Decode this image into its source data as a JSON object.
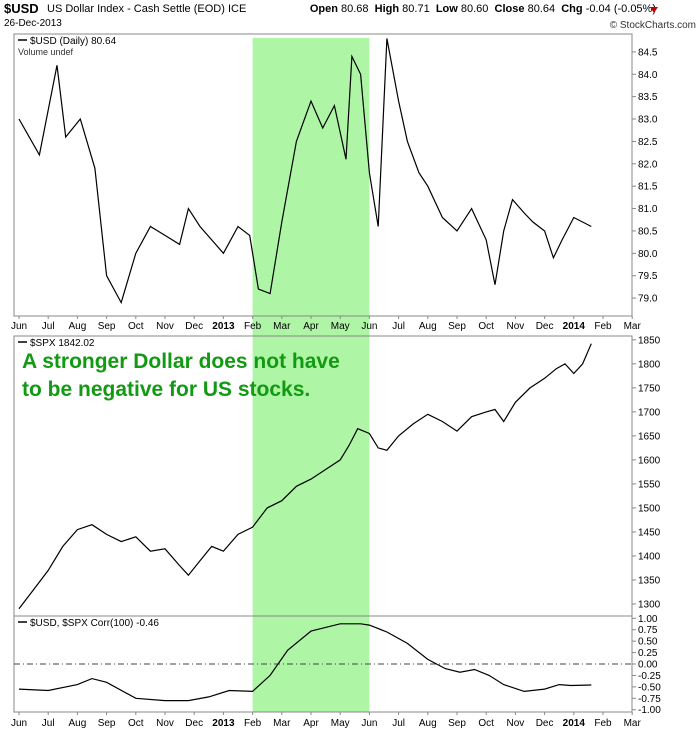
{
  "header": {
    "symbol": "$USD",
    "name": "US Dollar Index - Cash Settle (EOD)",
    "exchange": "ICE",
    "date": "26-Dec-2013",
    "open_label": "Open",
    "open": "80.68",
    "high_label": "High",
    "high": "80.71",
    "low_label": "Low",
    "low": "80.60",
    "close_label": "Close",
    "close": "80.64",
    "chg_label": "Chg",
    "chg": "-0.04 (-0.05%)",
    "credit": "© StockCharts.com"
  },
  "annotation": "A stronger Dollar does not have to be negative for US stocks.",
  "colors": {
    "highlight": "#aef5a6",
    "annotation": "#139a13",
    "line": "#000000",
    "change_down": "#c00000"
  },
  "chart_data": [
    {
      "type": "line",
      "legend": "$USD (Daily) 80.64",
      "sublegend": "Volume undef",
      "x_ticks": [
        "Jun",
        "Jul",
        "Aug",
        "Sep",
        "Oct",
        "Nov",
        "Dec",
        "2013",
        "Feb",
        "Mar",
        "Apr",
        "May",
        "Jun",
        "Jul",
        "Aug",
        "Sep",
        "Oct",
        "Nov",
        "Dec",
        "2014",
        "Feb",
        "Mar"
      ],
      "ylim": [
        78.6,
        84.9
      ],
      "yticks": [
        "79.0",
        "79.5",
        "80.0",
        "80.5",
        "81.0",
        "81.5",
        "82.0",
        "82.5",
        "83.0",
        "83.5",
        "84.0",
        "84.5"
      ],
      "x": [
        0,
        0.7,
        1.3,
        1.6,
        2.1,
        2.6,
        3.0,
        3.5,
        4.0,
        4.5,
        5.0,
        5.5,
        5.8,
        6.2,
        6.6,
        7.0,
        7.5,
        7.9,
        8.2,
        8.6,
        9.0,
        9.5,
        10.0,
        10.4,
        10.8,
        11.2,
        11.4,
        11.7,
        12.0,
        12.3,
        12.6,
        13.0,
        13.3,
        13.7,
        14.0,
        14.5,
        15.0,
        15.5,
        16.0,
        16.3,
        16.6,
        16.9,
        17.3,
        17.6,
        18.0,
        18.3,
        18.6,
        19.0,
        19.6
      ],
      "values": [
        83.0,
        82.2,
        84.2,
        82.6,
        83.0,
        81.9,
        79.5,
        78.9,
        80.0,
        80.6,
        80.4,
        80.2,
        81.0,
        80.6,
        80.3,
        80.0,
        80.6,
        80.4,
        79.2,
        79.1,
        80.7,
        82.5,
        83.4,
        82.8,
        83.3,
        82.1,
        84.4,
        84.0,
        81.8,
        80.6,
        84.8,
        83.4,
        82.5,
        81.8,
        81.5,
        80.8,
        80.5,
        81.0,
        80.3,
        79.3,
        80.5,
        81.2,
        80.9,
        80.7,
        80.5,
        79.9,
        80.3,
        80.8,
        80.6
      ]
    },
    {
      "type": "line",
      "legend": "$SPX 1842.02",
      "x_ticks": [],
      "ylim": [
        1275,
        1858
      ],
      "yticks": [
        "1300",
        "1350",
        "1400",
        "1450",
        "1500",
        "1550",
        "1600",
        "1650",
        "1700",
        "1750",
        "1800",
        "1850"
      ],
      "x": [
        0,
        0.5,
        1.0,
        1.5,
        2.0,
        2.5,
        3.0,
        3.5,
        4.0,
        4.5,
        5.0,
        5.5,
        5.8,
        6.2,
        6.6,
        7.0,
        7.5,
        8.0,
        8.5,
        9.0,
        9.5,
        10.0,
        10.5,
        11.0,
        11.3,
        11.6,
        12.0,
        12.3,
        12.6,
        13.0,
        13.5,
        14.0,
        14.5,
        15.0,
        15.5,
        16.0,
        16.3,
        16.6,
        17.0,
        17.5,
        18.0,
        18.4,
        18.7,
        19.0,
        19.3,
        19.6
      ],
      "values": [
        1290,
        1330,
        1370,
        1420,
        1455,
        1465,
        1445,
        1430,
        1440,
        1410,
        1415,
        1380,
        1360,
        1390,
        1420,
        1410,
        1445,
        1460,
        1500,
        1515,
        1545,
        1560,
        1580,
        1600,
        1630,
        1665,
        1655,
        1625,
        1620,
        1650,
        1675,
        1695,
        1680,
        1660,
        1690,
        1700,
        1705,
        1680,
        1720,
        1750,
        1770,
        1790,
        1800,
        1780,
        1800,
        1842
      ]
    },
    {
      "type": "line",
      "legend": "$USD, $SPX Corr(100) -0.46",
      "x_ticks": [
        "Jun",
        "Jul",
        "Aug",
        "Sep",
        "Oct",
        "Nov",
        "Dec",
        "2013",
        "Feb",
        "Mar",
        "Apr",
        "May",
        "Jun",
        "Jul",
        "Aug",
        "Sep",
        "Oct",
        "Nov",
        "Dec",
        "2014",
        "Feb",
        "Mar"
      ],
      "ylim": [
        -1.05,
        1.05
      ],
      "yticks": [
        "1.00",
        "0.75",
        "0.50",
        "0.25",
        "0.00",
        "-0.25",
        "-0.50",
        "-0.75",
        "-1.00"
      ],
      "x": [
        0,
        1.0,
        2.0,
        2.5,
        3.0,
        4.0,
        5.0,
        5.8,
        6.5,
        7.2,
        8.0,
        8.6,
        9.2,
        10.0,
        11.0,
        11.7,
        12.0,
        12.6,
        13.3,
        14.0,
        14.6,
        15.1,
        15.6,
        16.1,
        16.6,
        17.3,
        18.0,
        18.5,
        18.9,
        19.6
      ],
      "values": [
        -0.55,
        -0.58,
        -0.45,
        -0.32,
        -0.4,
        -0.75,
        -0.8,
        -0.8,
        -0.72,
        -0.58,
        -0.6,
        -0.25,
        0.3,
        0.72,
        0.88,
        0.88,
        0.85,
        0.7,
        0.45,
        0.1,
        -0.1,
        -0.18,
        -0.12,
        -0.25,
        -0.45,
        -0.6,
        -0.55,
        -0.45,
        -0.47,
        -0.46
      ]
    }
  ],
  "highlight_range": [
    8.0,
    12.0
  ]
}
